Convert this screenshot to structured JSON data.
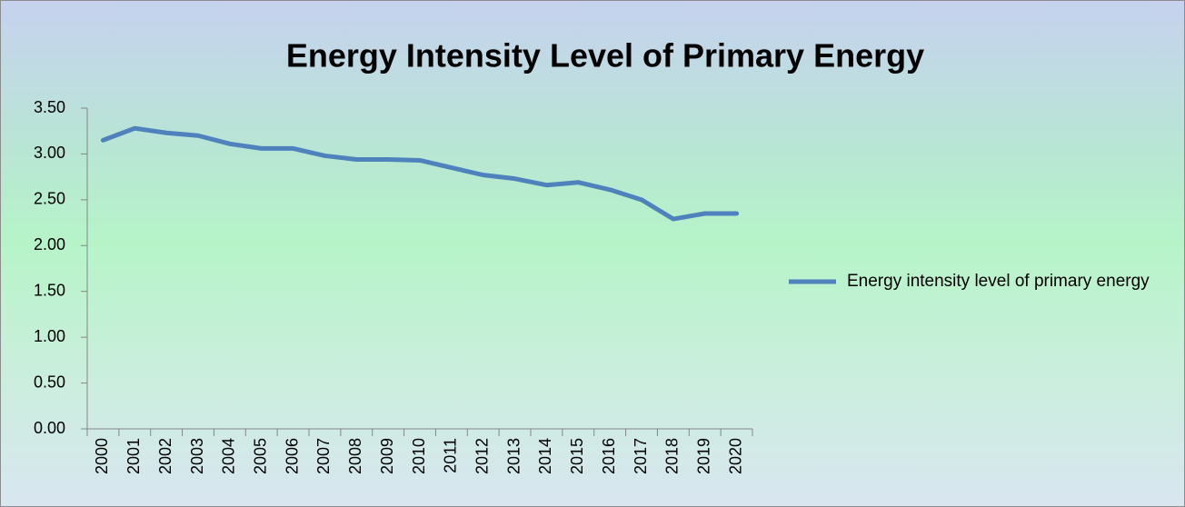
{
  "chart_data": {
    "type": "line",
    "title": "Energy Intensity Level of Primary Energy",
    "categories": [
      "2000",
      "2001",
      "2002",
      "2003",
      "2004",
      "2005",
      "2006",
      "2007",
      "2008",
      "2009",
      "2010",
      "2011",
      "2012",
      "2013",
      "2014",
      "2015",
      "2016",
      "2017",
      "2018",
      "2019",
      "2020"
    ],
    "series": [
      {
        "name": "Energy intensity level of primary energy",
        "color": "#4f81bd",
        "values": [
          3.15,
          3.28,
          3.23,
          3.2,
          3.11,
          3.06,
          3.06,
          2.98,
          2.94,
          2.94,
          2.93,
          2.85,
          2.77,
          2.73,
          2.66,
          2.69,
          2.61,
          2.5,
          2.29,
          2.35,
          2.35
        ]
      }
    ],
    "ylim": [
      0,
      3.5
    ],
    "yticks": [
      {
        "value": 0,
        "label": "0.00"
      },
      {
        "value": 0.5,
        "label": "0.50"
      },
      {
        "value": 1,
        "label": "1.00"
      },
      {
        "value": 1.5,
        "label": "1.50"
      },
      {
        "value": 2,
        "label": "2.00"
      },
      {
        "value": 2.5,
        "label": "2.50"
      },
      {
        "value": 3,
        "label": "3.00"
      },
      {
        "value": 3.5,
        "label": "3.50"
      }
    ],
    "grid": false,
    "legend": "right"
  }
}
